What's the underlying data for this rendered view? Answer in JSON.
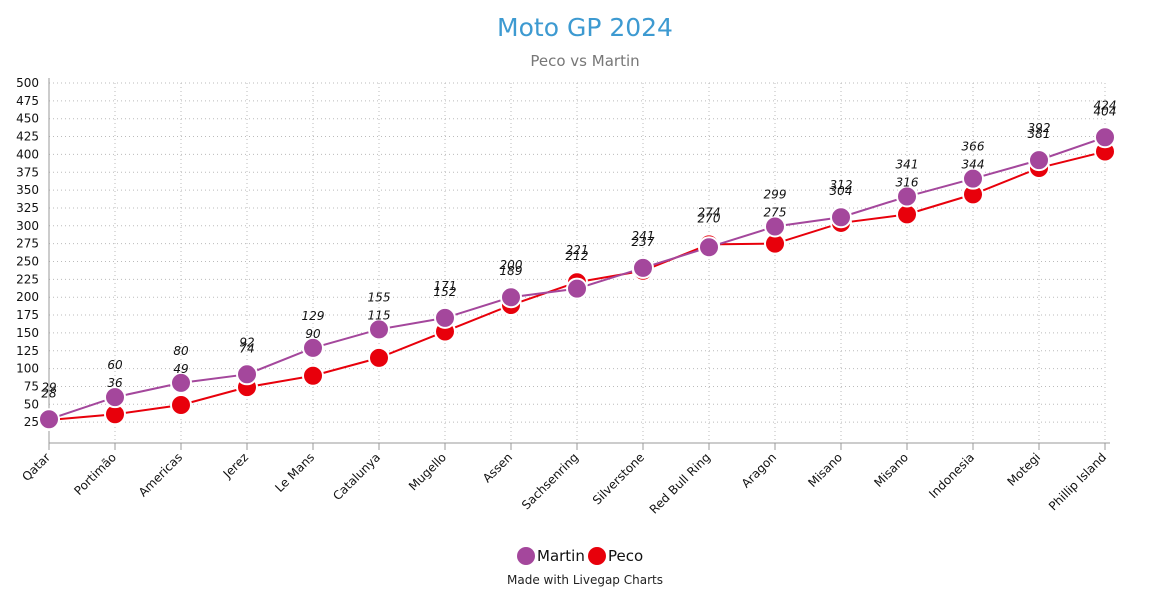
{
  "chart_data": {
    "type": "line",
    "title": "Moto GP 2024",
    "subtitle": "Peco vs Martin",
    "credit": "Made with Livegap Charts",
    "categories": [
      "Qatar",
      "Portimão",
      "Americas",
      "Jerez",
      "Le Mans",
      "Catalunya",
      "Mugello",
      "Assen",
      "Sachsenring",
      "Silverstone",
      "Red Bull Ring",
      "Aragon",
      "Misano",
      "Misano",
      "Indonesia",
      "Motegi",
      "Phillip Island"
    ],
    "series": [
      {
        "name": "Martin",
        "color": "#a4479c",
        "values": [
          29,
          60,
          80,
          92,
          129,
          155,
          171,
          200,
          212,
          241,
          270,
          299,
          312,
          341,
          366,
          392,
          424
        ]
      },
      {
        "name": "Peco",
        "color": "#e8000b",
        "values": [
          28,
          36,
          49,
          74,
          90,
          115,
          152,
          189,
          221,
          237,
          274,
          275,
          304,
          316,
          344,
          381,
          404
        ]
      }
    ],
    "yticks": [
      25,
      50,
      75,
      100,
      125,
      150,
      175,
      200,
      225,
      250,
      275,
      300,
      325,
      350,
      375,
      400,
      425,
      450,
      475,
      500
    ],
    "ylim": [
      0,
      500
    ],
    "grid": true,
    "legend_position": "bottom",
    "colors": {
      "title": "#3d9ad1",
      "subtitle": "#777777",
      "axis": "#999999",
      "grid": "#bbbbbb"
    }
  }
}
